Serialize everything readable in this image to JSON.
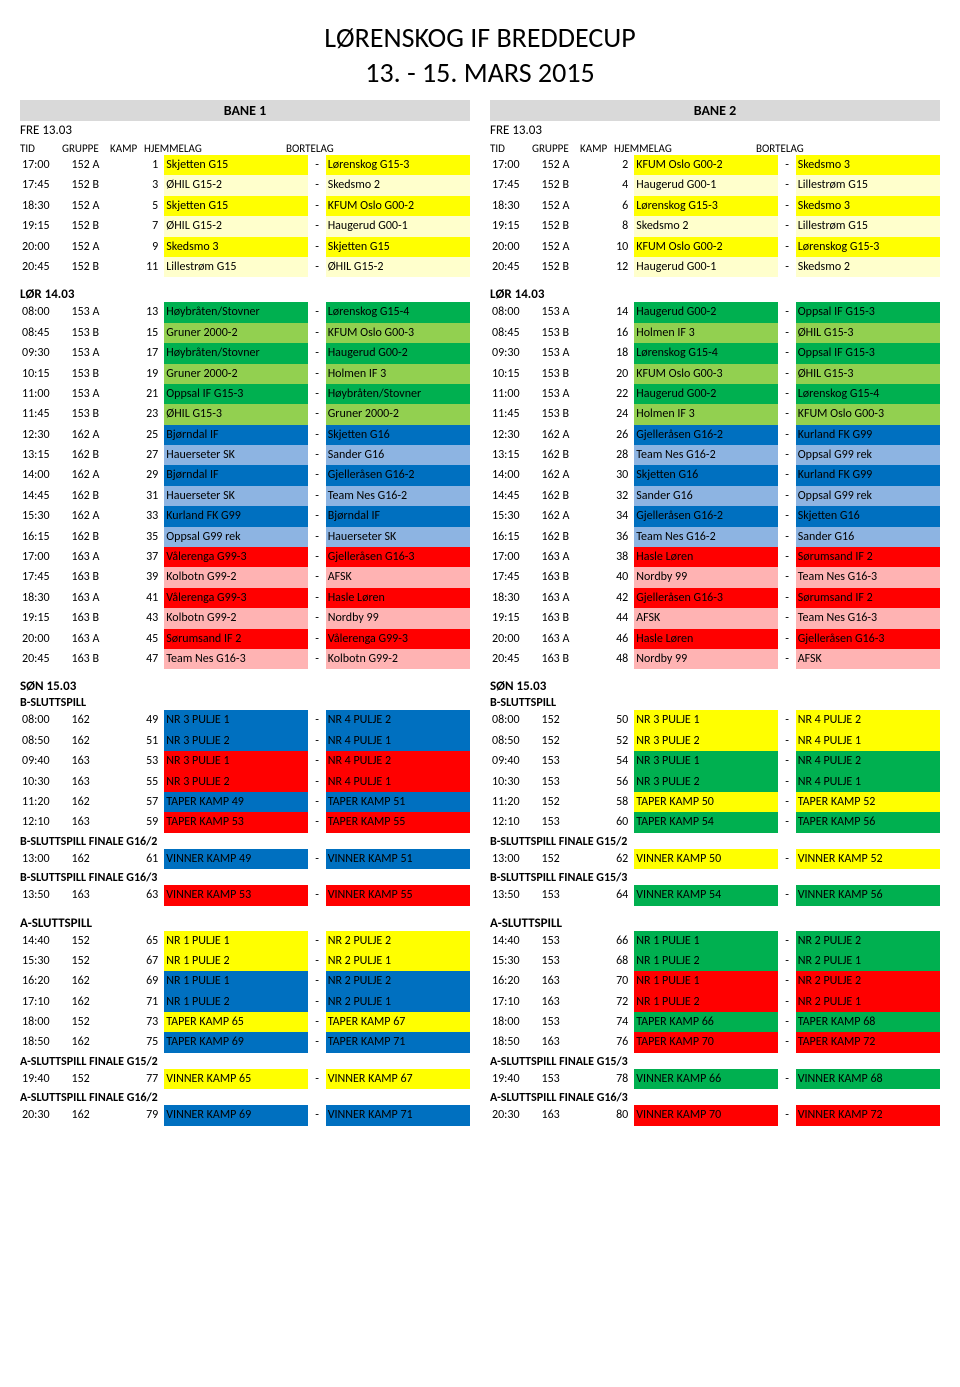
{
  "title1": "LØRENSKOG IF BREDDECUP",
  "title2": "13. - 15. MARS 2015",
  "colors": {
    "yellow": "#ffff00",
    "lightyellow": "#ffffcc",
    "green": "#00b050",
    "lightgreen": "#92d050",
    "blue": "#0070c0",
    "lightblue": "#8db4e2",
    "red": "#ff0000",
    "lightred": "#ffb3b3",
    "gray": "#d9d9d9"
  },
  "headers": {
    "tid": "TID",
    "gruppe": "GRUPPE",
    "kamp": "KAMP",
    "hjemmelag": "HJEMMELAG",
    "bortelag": "BORTELAG"
  },
  "bane1": "BANE 1",
  "bane2": "BANE 2",
  "fre": "FRE 13.03",
  "lor": "LØR 14.03",
  "son": "SØN 15.03",
  "bslutt": "B-SLUTTSPILL",
  "aslutt": "A-SLUTTSPILL",
  "bfinale162": "B-SLUTTSPILL FINALE G16/2",
  "bfinale163": "B-SLUTTSPILL FINALE G16/3",
  "bfinale152": "B-SLUTTSPILL FINALE G15/2",
  "bfinale153": "B-SLUTTSPILL FINALE G15/3",
  "afinale152": "A-SLUTTSPILL FINALE G15/2",
  "afinale162": "A-SLUTTSPILL FINALE G16/2",
  "afinale153": "A-SLUTTSPILL FINALE G15/3",
  "afinale163": "A-SLUTTSPILL FINALE G16/3",
  "bane1_fre": [
    {
      "t": "17:00",
      "g": "152 A",
      "k": "1",
      "h": "Skjetten G15",
      "b": "Lørenskog G15-3",
      "hc": "yellow",
      "bc": "yellow"
    },
    {
      "t": "17:45",
      "g": "152 B",
      "k": "3",
      "h": "ØHIL G15-2",
      "b": "Skedsmo 2",
      "hc": "lightyellow",
      "bc": "lightyellow"
    },
    {
      "t": "18:30",
      "g": "152 A",
      "k": "5",
      "h": "Skjetten G15",
      "b": "KFUM Oslo G00-2",
      "hc": "yellow",
      "bc": "yellow"
    },
    {
      "t": "19:15",
      "g": "152 B",
      "k": "7",
      "h": "ØHIL G15-2",
      "b": "Haugerud G00-1",
      "hc": "lightyellow",
      "bc": "lightyellow"
    },
    {
      "t": "20:00",
      "g": "152 A",
      "k": "9",
      "h": "Skedsmo 3",
      "b": "Skjetten G15",
      "hc": "yellow",
      "bc": "yellow"
    },
    {
      "t": "20:45",
      "g": "152 B",
      "k": "11",
      "h": "Lillestrøm G15",
      "b": "ØHIL G15-2",
      "hc": "lightyellow",
      "bc": "lightyellow"
    }
  ],
  "bane2_fre": [
    {
      "t": "17:00",
      "g": "152 A",
      "k": "2",
      "h": "KFUM Oslo G00-2",
      "b": "Skedsmo 3",
      "hc": "yellow",
      "bc": "yellow"
    },
    {
      "t": "17:45",
      "g": "152 B",
      "k": "4",
      "h": "Haugerud G00-1",
      "b": "Lillestrøm G15",
      "hc": "lightyellow",
      "bc": "lightyellow"
    },
    {
      "t": "18:30",
      "g": "152 A",
      "k": "6",
      "h": "Lørenskog G15-3",
      "b": "Skedsmo 3",
      "hc": "yellow",
      "bc": "yellow"
    },
    {
      "t": "19:15",
      "g": "152 B",
      "k": "8",
      "h": "Skedsmo 2",
      "b": "Lillestrøm G15",
      "hc": "lightyellow",
      "bc": "lightyellow"
    },
    {
      "t": "20:00",
      "g": "152 A",
      "k": "10",
      "h": "KFUM Oslo G00-2",
      "b": "Lørenskog G15-3",
      "hc": "yellow",
      "bc": "yellow"
    },
    {
      "t": "20:45",
      "g": "152 B",
      "k": "12",
      "h": "Haugerud G00-1",
      "b": "Skedsmo 2",
      "hc": "lightyellow",
      "bc": "lightyellow"
    }
  ],
  "bane1_lor": [
    {
      "t": "08:00",
      "g": "153 A",
      "k": "13",
      "h": "Høybråten/Stovner",
      "b": "Lørenskog G15-4",
      "hc": "green",
      "bc": "green"
    },
    {
      "t": "08:45",
      "g": "153 B",
      "k": "15",
      "h": "Gruner 2000-2",
      "b": "KFUM Oslo G00-3",
      "hc": "lightgreen",
      "bc": "lightgreen"
    },
    {
      "t": "09:30",
      "g": "153 A",
      "k": "17",
      "h": "Høybråten/Stovner",
      "b": "Haugerud G00-2",
      "hc": "green",
      "bc": "green"
    },
    {
      "t": "10:15",
      "g": "153 B",
      "k": "19",
      "h": "Gruner 2000-2",
      "b": "Holmen IF 3",
      "hc": "lightgreen",
      "bc": "lightgreen"
    },
    {
      "t": "11:00",
      "g": "153 A",
      "k": "21",
      "h": "Oppsal IF G15-3",
      "b": "Høybråten/Stovner",
      "hc": "green",
      "bc": "green"
    },
    {
      "t": "11:45",
      "g": "153 B",
      "k": "23",
      "h": "ØHIL G15-3",
      "b": "Gruner 2000-2",
      "hc": "lightgreen",
      "bc": "lightgreen"
    },
    {
      "t": "12:30",
      "g": "162 A",
      "k": "25",
      "h": "Bjørndal IF",
      "b": "Skjetten G16",
      "hc": "blue",
      "bc": "blue"
    },
    {
      "t": "13:15",
      "g": "162 B",
      "k": "27",
      "h": "Hauerseter SK",
      "b": "Sander G16",
      "hc": "lightblue",
      "bc": "lightblue"
    },
    {
      "t": "14:00",
      "g": "162 A",
      "k": "29",
      "h": "Bjørndal IF",
      "b": "Gjelleråsen G16-2",
      "hc": "blue",
      "bc": "blue"
    },
    {
      "t": "14:45",
      "g": "162 B",
      "k": "31",
      "h": "Hauerseter SK",
      "b": "Team Nes G16-2",
      "hc": "lightblue",
      "bc": "lightblue"
    },
    {
      "t": "15:30",
      "g": "162 A",
      "k": "33",
      "h": "Kurland FK G99",
      "b": "Bjørndal IF",
      "hc": "blue",
      "bc": "blue"
    },
    {
      "t": "16:15",
      "g": "162 B",
      "k": "35",
      "h": "Oppsal G99 rek",
      "b": "Hauerseter SK",
      "hc": "lightblue",
      "bc": "lightblue"
    },
    {
      "t": "17:00",
      "g": "163 A",
      "k": "37",
      "h": "Vålerenga G99-3",
      "b": "Gjelleråsen G16-3",
      "hc": "red",
      "bc": "red"
    },
    {
      "t": "17:45",
      "g": "163 B",
      "k": "39",
      "h": "Kolbotn G99-2",
      "b": "AFSK",
      "hc": "lightred",
      "bc": "lightred"
    },
    {
      "t": "18:30",
      "g": "163 A",
      "k": "41",
      "h": "Vålerenga G99-3",
      "b": "Hasle Løren",
      "hc": "red",
      "bc": "red"
    },
    {
      "t": "19:15",
      "g": "163 B",
      "k": "43",
      "h": "Kolbotn G99-2",
      "b": "Nordby 99",
      "hc": "lightred",
      "bc": "lightred"
    },
    {
      "t": "20:00",
      "g": "163 A",
      "k": "45",
      "h": "Sørumsand IF 2",
      "b": "Vålerenga G99-3",
      "hc": "red",
      "bc": "red"
    },
    {
      "t": "20:45",
      "g": "163 B",
      "k": "47",
      "h": "Team Nes G16-3",
      "b": "Kolbotn G99-2",
      "hc": "lightred",
      "bc": "lightred"
    }
  ],
  "bane2_lor": [
    {
      "t": "08:00",
      "g": "153 A",
      "k": "14",
      "h": "Haugerud G00-2",
      "b": "Oppsal IF G15-3",
      "hc": "green",
      "bc": "green"
    },
    {
      "t": "08:45",
      "g": "153 B",
      "k": "16",
      "h": "Holmen IF 3",
      "b": "ØHIL G15-3",
      "hc": "lightgreen",
      "bc": "lightgreen"
    },
    {
      "t": "09:30",
      "g": "153 A",
      "k": "18",
      "h": "Lørenskog G15-4",
      "b": "Oppsal IF G15-3",
      "hc": "green",
      "bc": "green"
    },
    {
      "t": "10:15",
      "g": "153 B",
      "k": "20",
      "h": "KFUM Oslo G00-3",
      "b": "ØHIL G15-3",
      "hc": "lightgreen",
      "bc": "lightgreen"
    },
    {
      "t": "11:00",
      "g": "153 A",
      "k": "22",
      "h": "Haugerud G00-2",
      "b": "Lørenskog G15-4",
      "hc": "green",
      "bc": "green"
    },
    {
      "t": "11:45",
      "g": "153 B",
      "k": "24",
      "h": "Holmen IF 3",
      "b": "KFUM Oslo G00-3",
      "hc": "lightgreen",
      "bc": "lightgreen"
    },
    {
      "t": "12:30",
      "g": "162 A",
      "k": "26",
      "h": "Gjelleråsen G16-2",
      "b": "Kurland FK G99",
      "hc": "blue",
      "bc": "blue"
    },
    {
      "t": "13:15",
      "g": "162 B",
      "k": "28",
      "h": "Team Nes G16-2",
      "b": "Oppsal G99 rek",
      "hc": "lightblue",
      "bc": "lightblue"
    },
    {
      "t": "14:00",
      "g": "162 A",
      "k": "30",
      "h": "Skjetten G16",
      "b": "Kurland FK G99",
      "hc": "blue",
      "bc": "blue"
    },
    {
      "t": "14:45",
      "g": "162 B",
      "k": "32",
      "h": "Sander G16",
      "b": "Oppsal G99 rek",
      "hc": "lightblue",
      "bc": "lightblue"
    },
    {
      "t": "15:30",
      "g": "162 A",
      "k": "34",
      "h": "Gjelleråsen G16-2",
      "b": "Skjetten G16",
      "hc": "blue",
      "bc": "blue"
    },
    {
      "t": "16:15",
      "g": "162 B",
      "k": "36",
      "h": "Team Nes G16-2",
      "b": "Sander G16",
      "hc": "lightblue",
      "bc": "lightblue"
    },
    {
      "t": "17:00",
      "g": "163 A",
      "k": "38",
      "h": "Hasle Løren",
      "b": "Sørumsand IF 2",
      "hc": "red",
      "bc": "red"
    },
    {
      "t": "17:45",
      "g": "163 B",
      "k": "40",
      "h": "Nordby 99",
      "b": "Team Nes G16-3",
      "hc": "lightred",
      "bc": "lightred"
    },
    {
      "t": "18:30",
      "g": "163 A",
      "k": "42",
      "h": "Gjelleråsen G16-3",
      "b": "Sørumsand IF 2",
      "hc": "red",
      "bc": "red"
    },
    {
      "t": "19:15",
      "g": "163 B",
      "k": "44",
      "h": "AFSK",
      "b": "Team Nes G16-3",
      "hc": "lightred",
      "bc": "lightred"
    },
    {
      "t": "20:00",
      "g": "163 A",
      "k": "46",
      "h": "Hasle Løren",
      "b": "Gjelleråsen G16-3",
      "hc": "red",
      "bc": "red"
    },
    {
      "t": "20:45",
      "g": "163 B",
      "k": "48",
      "h": "Nordby 99",
      "b": "AFSK",
      "hc": "lightred",
      "bc": "lightred"
    }
  ],
  "bane1_son_b": [
    {
      "t": "08:00",
      "g": "162",
      "k": "49",
      "h": "NR 3 PULJE 1",
      "b": "NR 4 PULJE 2",
      "hc": "blue",
      "bc": "blue"
    },
    {
      "t": "08:50",
      "g": "162",
      "k": "51",
      "h": "NR 3 PULJE 2",
      "b": "NR 4 PULJE 1",
      "hc": "blue",
      "bc": "blue"
    },
    {
      "t": "09:40",
      "g": "163",
      "k": "53",
      "h": "NR 3 PULJE 1",
      "b": "NR 4 PULJE 2",
      "hc": "red",
      "bc": "red"
    },
    {
      "t": "10:30",
      "g": "163",
      "k": "55",
      "h": "NR 3 PULJE 2",
      "b": "NR 4 PULJE 1",
      "hc": "red",
      "bc": "red"
    },
    {
      "t": "11:20",
      "g": "162",
      "k": "57",
      "h": "TAPER KAMP 49",
      "b": "TAPER KAMP 51",
      "hc": "blue",
      "bc": "blue"
    },
    {
      "t": "12:10",
      "g": "163",
      "k": "59",
      "h": "TAPER KAMP 53",
      "b": "TAPER KAMP 55",
      "hc": "red",
      "bc": "red"
    }
  ],
  "bane1_son_bf162": [
    {
      "t": "13:00",
      "g": "162",
      "k": "61",
      "h": "VINNER KAMP 49",
      "b": "VINNER KAMP 51",
      "hc": "blue",
      "bc": "blue"
    }
  ],
  "bane1_son_bf163": [
    {
      "t": "13:50",
      "g": "163",
      "k": "63",
      "h": "VINNER KAMP 53",
      "b": "VINNER KAMP 55",
      "hc": "red",
      "bc": "red"
    }
  ],
  "bane1_son_a": [
    {
      "t": "14:40",
      "g": "152",
      "k": "65",
      "h": "NR 1 PULJE 1",
      "b": "NR 2 PULJE 2",
      "hc": "yellow",
      "bc": "yellow"
    },
    {
      "t": "15:30",
      "g": "152",
      "k": "67",
      "h": "NR 1 PULJE 2",
      "b": "NR 2 PULJE 1",
      "hc": "yellow",
      "bc": "yellow"
    },
    {
      "t": "16:20",
      "g": "162",
      "k": "69",
      "h": "NR 1 PULJE 1",
      "b": "NR 2 PULJE 2",
      "hc": "blue",
      "bc": "blue"
    },
    {
      "t": "17:10",
      "g": "162",
      "k": "71",
      "h": "NR 1 PULJE 2",
      "b": "NR 2 PULJE 1",
      "hc": "blue",
      "bc": "blue"
    },
    {
      "t": "18:00",
      "g": "152",
      "k": "73",
      "h": "TAPER KAMP 65",
      "b": "TAPER KAMP 67",
      "hc": "yellow",
      "bc": "yellow"
    },
    {
      "t": "18:50",
      "g": "162",
      "k": "75",
      "h": "TAPER KAMP 69",
      "b": "TAPER KAMP 71",
      "hc": "blue",
      "bc": "blue"
    }
  ],
  "bane1_son_af152": [
    {
      "t": "19:40",
      "g": "152",
      "k": "77",
      "h": "VINNER KAMP 65",
      "b": "VINNER KAMP 67",
      "hc": "yellow",
      "bc": "yellow"
    }
  ],
  "bane1_son_af162": [
    {
      "t": "20:30",
      "g": "162",
      "k": "79",
      "h": "VINNER KAMP 69",
      "b": "VINNER KAMP 71",
      "hc": "blue",
      "bc": "blue"
    }
  ],
  "bane2_son_b": [
    {
      "t": "08:00",
      "g": "152",
      "k": "50",
      "h": "NR 3 PULJE 1",
      "b": "NR 4 PULJE 2",
      "hc": "yellow",
      "bc": "yellow"
    },
    {
      "t": "08:50",
      "g": "152",
      "k": "52",
      "h": "NR 3 PULJE 2",
      "b": "NR 4 PULJE 1",
      "hc": "yellow",
      "bc": "yellow"
    },
    {
      "t": "09:40",
      "g": "153",
      "k": "54",
      "h": "NR 3 PULJE 1",
      "b": "NR 4 PULJE 2",
      "hc": "green",
      "bc": "green"
    },
    {
      "t": "10:30",
      "g": "153",
      "k": "56",
      "h": "NR 3 PULJE 2",
      "b": "NR 4 PULJE 1",
      "hc": "green",
      "bc": "green"
    },
    {
      "t": "11:20",
      "g": "152",
      "k": "58",
      "h": "TAPER KAMP 50",
      "b": "TAPER KAMP 52",
      "hc": "yellow",
      "bc": "yellow"
    },
    {
      "t": "12:10",
      "g": "153",
      "k": "60",
      "h": "TAPER KAMP 54",
      "b": "TAPER KAMP 56",
      "hc": "green",
      "bc": "green"
    }
  ],
  "bane2_son_bf152": [
    {
      "t": "13:00",
      "g": "152",
      "k": "62",
      "h": "VINNER KAMP 50",
      "b": "VINNER KAMP 52",
      "hc": "yellow",
      "bc": "yellow"
    }
  ],
  "bane2_son_bf153": [
    {
      "t": "13:50",
      "g": "153",
      "k": "64",
      "h": "VINNER KAMP 54",
      "b": "VINNER KAMP 56",
      "hc": "green",
      "bc": "green"
    }
  ],
  "bane2_son_a": [
    {
      "t": "14:40",
      "g": "153",
      "k": "66",
      "h": "NR 1 PULJE 1",
      "b": "NR 2 PULJE 2",
      "hc": "green",
      "bc": "green"
    },
    {
      "t": "15:30",
      "g": "153",
      "k": "68",
      "h": "NR 1 PULJE 2",
      "b": "NR 2 PULJE 1",
      "hc": "green",
      "bc": "green"
    },
    {
      "t": "16:20",
      "g": "163",
      "k": "70",
      "h": "NR 1 PULJE 1",
      "b": "NR 2 PULJE 2",
      "hc": "red",
      "bc": "red"
    },
    {
      "t": "17:10",
      "g": "163",
      "k": "72",
      "h": "NR 1 PULJE 2",
      "b": "NR 2 PULJE 1",
      "hc": "red",
      "bc": "red"
    },
    {
      "t": "18:00",
      "g": "153",
      "k": "74",
      "h": "TAPER KAMP 66",
      "b": "TAPER KAMP 68",
      "hc": "green",
      "bc": "green"
    },
    {
      "t": "18:50",
      "g": "163",
      "k": "76",
      "h": "TAPER KAMP 70",
      "b": "TAPER KAMP 72",
      "hc": "red",
      "bc": "red"
    }
  ],
  "bane2_son_af153": [
    {
      "t": "19:40",
      "g": "153",
      "k": "78",
      "h": "VINNER KAMP 66",
      "b": "VINNER KAMP 68",
      "hc": "green",
      "bc": "green"
    }
  ],
  "bane2_son_af163": [
    {
      "t": "20:30",
      "g": "163",
      "k": "80",
      "h": "VINNER KAMP 70",
      "b": "VINNER KAMP 72",
      "hc": "red",
      "bc": "red"
    }
  ]
}
